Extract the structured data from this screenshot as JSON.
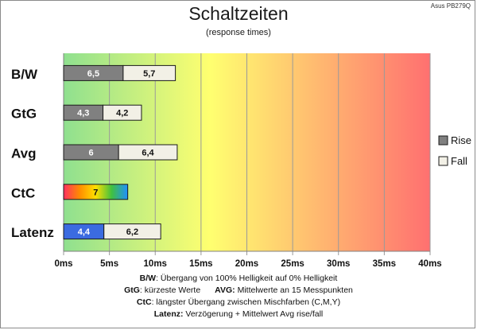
{
  "corner_label": "Asus PB279Q",
  "chart_data": {
    "type": "bar",
    "orientation": "horizontal",
    "stacked": true,
    "title": "Schaltzeiten",
    "subtitle": "(response times)",
    "categories": [
      "B/W",
      "GtG",
      "Avg",
      "CtC",
      "Latenz"
    ],
    "series": [
      {
        "name": "Rise",
        "values": [
          6.5,
          4.3,
          6,
          7,
          4.4
        ],
        "labels": [
          "6,5",
          "4,3",
          "6",
          "7",
          "4,4"
        ]
      },
      {
        "name": "Fall",
        "values": [
          5.7,
          4.2,
          6.4,
          null,
          6.2
        ],
        "labels": [
          "5,7",
          "4,2",
          "6,4",
          "",
          "6,2"
        ]
      }
    ],
    "xlim": [
      0,
      40
    ],
    "xticks": [
      0,
      5,
      10,
      15,
      20,
      25,
      30,
      35,
      40
    ],
    "xtick_labels": [
      "0ms",
      "5ms",
      "10ms",
      "15ms",
      "20ms",
      "25ms",
      "30ms",
      "35ms",
      "40ms"
    ],
    "grid": true,
    "legend_position": "right",
    "background_gradient": [
      "#8fe08f",
      "#ffff70",
      "#ff7070"
    ],
    "colors": {
      "rise": "#808080",
      "fall": "#f2f0e6",
      "latenz_rise": "#3b6be0",
      "ctc_gradient": [
        "#ff3060",
        "#ff8c00",
        "#ffe000",
        "#40c040",
        "#2090ff"
      ]
    }
  },
  "notes": {
    "line1_key": "B/W",
    "line1_text": ":  Übergang von 100% Helligkeit auf 0% Helligkeit",
    "line2_key_a": "GtG",
    "line2_text_a": ": kürzeste  Werte",
    "line2_key_b": "AVG:",
    "line2_text_b": " Mittelwerte  an 15 Messpunkten",
    "line3_key": "CtC",
    "line3_text": ": längster Übergang  zwischen Mischfarben (C,M,Y)",
    "line4_key": "Latenz:",
    "line4_text": " Verzögerung  + Mittelwert Avg rise/fall"
  }
}
